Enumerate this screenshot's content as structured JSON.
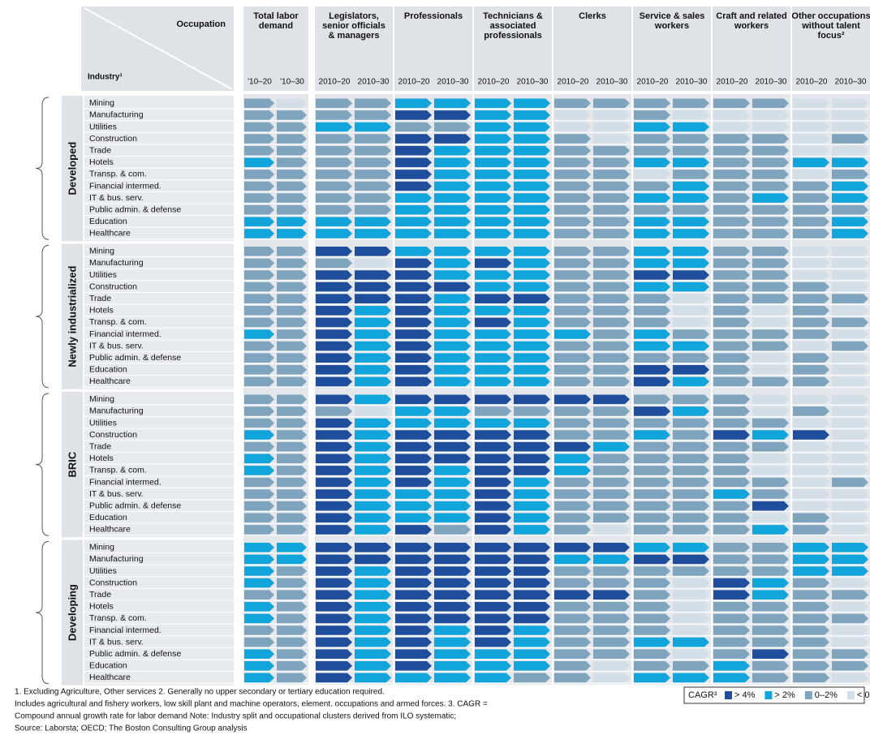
{
  "chart_data": {
    "type": "heatmap",
    "header_top": "Occupation",
    "header_bottom": "Industry¹",
    "columns": [
      {
        "name": "Total labor demand",
        "periods": [
          "'10–20",
          "'10–30"
        ]
      },
      {
        "name": "Legislators, senior officials & managers",
        "periods": [
          "2010–20",
          "2010–30"
        ]
      },
      {
        "name": "Professionals",
        "periods": [
          "2010–20",
          "2010–30"
        ]
      },
      {
        "name": "Technicians & associated professionals",
        "periods": [
          "2010–20",
          "2010–30"
        ]
      },
      {
        "name": "Clerks",
        "periods": [
          "2010–20",
          "2010–30"
        ]
      },
      {
        "name": "Service & sales workers",
        "periods": [
          "2010–20",
          "2010–30"
        ]
      },
      {
        "name": "Craft and related workers",
        "periods": [
          "2010–20",
          "2010–30"
        ]
      },
      {
        "name": "Other occupations without talent focus²",
        "periods": [
          "2010–20",
          "2010–30"
        ]
      }
    ],
    "industries": [
      "Mining",
      "Manufacturing",
      "Utilities",
      "Construction",
      "Trade",
      "Hotels",
      "Transp. & com.",
      "Financial intermed.",
      "IT & bus. serv.",
      "Public admin. & defense",
      "Education",
      "Healthcare"
    ],
    "groups": [
      {
        "name": "Developed",
        "rows": [
          [
            2,
            3,
            2,
            2,
            1,
            1,
            1,
            1,
            2,
            2,
            2,
            2,
            2,
            2,
            3,
            3
          ],
          [
            2,
            2,
            2,
            2,
            0,
            0,
            1,
            1,
            3,
            3,
            2,
            3,
            3,
            3,
            3,
            3
          ],
          [
            2,
            2,
            1,
            1,
            2,
            2,
            1,
            1,
            3,
            3,
            1,
            1,
            3,
            3,
            3,
            3
          ],
          [
            2,
            2,
            2,
            2,
            0,
            0,
            1,
            1,
            2,
            3,
            2,
            2,
            2,
            2,
            3,
            2
          ],
          [
            2,
            2,
            2,
            2,
            0,
            1,
            1,
            1,
            2,
            2,
            2,
            2,
            2,
            2,
            3,
            3
          ],
          [
            1,
            2,
            2,
            2,
            0,
            1,
            1,
            1,
            2,
            2,
            1,
            1,
            2,
            2,
            1,
            1
          ],
          [
            2,
            2,
            2,
            2,
            0,
            1,
            1,
            1,
            2,
            2,
            3,
            2,
            2,
            2,
            3,
            2
          ],
          [
            2,
            2,
            2,
            2,
            0,
            1,
            1,
            1,
            2,
            2,
            2,
            1,
            2,
            2,
            2,
            1
          ],
          [
            2,
            2,
            2,
            2,
            1,
            1,
            1,
            1,
            2,
            2,
            1,
            1,
            2,
            1,
            2,
            1
          ],
          [
            2,
            2,
            2,
            2,
            1,
            1,
            1,
            1,
            2,
            2,
            2,
            2,
            2,
            2,
            2,
            2
          ],
          [
            1,
            1,
            1,
            1,
            1,
            1,
            1,
            1,
            2,
            2,
            1,
            1,
            2,
            2,
            2,
            1
          ],
          [
            1,
            1,
            1,
            1,
            1,
            1,
            1,
            1,
            2,
            2,
            1,
            1,
            2,
            2,
            2,
            1
          ]
        ]
      },
      {
        "name": "Newly industrialized",
        "rows": [
          [
            2,
            2,
            0,
            0,
            1,
            1,
            1,
            1,
            2,
            2,
            1,
            1,
            2,
            2,
            3,
            3
          ],
          [
            2,
            2,
            2,
            3,
            0,
            1,
            0,
            1,
            2,
            2,
            1,
            1,
            2,
            2,
            3,
            3
          ],
          [
            2,
            2,
            0,
            0,
            0,
            1,
            1,
            1,
            2,
            2,
            0,
            0,
            2,
            2,
            3,
            3
          ],
          [
            2,
            2,
            0,
            0,
            0,
            0,
            1,
            1,
            2,
            2,
            1,
            1,
            2,
            2,
            2,
            3
          ],
          [
            2,
            2,
            0,
            0,
            0,
            1,
            0,
            0,
            2,
            2,
            2,
            3,
            2,
            2,
            2,
            2
          ],
          [
            2,
            2,
            0,
            1,
            0,
            1,
            1,
            1,
            2,
            2,
            2,
            3,
            2,
            3,
            2,
            3
          ],
          [
            2,
            2,
            0,
            1,
            0,
            1,
            0,
            1,
            2,
            2,
            2,
            3,
            2,
            3,
            2,
            2
          ],
          [
            1,
            2,
            0,
            1,
            0,
            1,
            1,
            1,
            1,
            2,
            1,
            2,
            2,
            2,
            2,
            3
          ],
          [
            2,
            2,
            0,
            1,
            0,
            1,
            1,
            1,
            2,
            2,
            1,
            1,
            2,
            2,
            3,
            2
          ],
          [
            2,
            2,
            0,
            1,
            0,
            1,
            1,
            1,
            2,
            2,
            2,
            2,
            2,
            3,
            2,
            3
          ],
          [
            2,
            2,
            0,
            1,
            0,
            1,
            1,
            1,
            2,
            2,
            0,
            0,
            2,
            3,
            2,
            3
          ],
          [
            2,
            2,
            0,
            1,
            0,
            1,
            1,
            1,
            2,
            2,
            0,
            1,
            2,
            2,
            2,
            3
          ]
        ]
      },
      {
        "name": "BRIC",
        "rows": [
          [
            2,
            2,
            0,
            1,
            0,
            0,
            0,
            0,
            0,
            0,
            2,
            2,
            2,
            3,
            3,
            3
          ],
          [
            2,
            2,
            2,
            3,
            1,
            1,
            2,
            2,
            2,
            2,
            0,
            1,
            2,
            3,
            2,
            3
          ],
          [
            2,
            2,
            0,
            1,
            1,
            1,
            1,
            1,
            2,
            2,
            2,
            2,
            2,
            2,
            3,
            3
          ],
          [
            1,
            2,
            0,
            1,
            0,
            0,
            0,
            0,
            2,
            2,
            1,
            2,
            0,
            1,
            0,
            3
          ],
          [
            2,
            2,
            0,
            1,
            0,
            0,
            0,
            0,
            0,
            1,
            2,
            2,
            2,
            2,
            3,
            3
          ],
          [
            1,
            2,
            0,
            1,
            0,
            0,
            0,
            0,
            1,
            2,
            2,
            2,
            2,
            3,
            3,
            3
          ],
          [
            1,
            2,
            0,
            1,
            0,
            1,
            0,
            0,
            1,
            2,
            2,
            2,
            2,
            3,
            3,
            3
          ],
          [
            2,
            2,
            0,
            1,
            0,
            1,
            0,
            1,
            2,
            2,
            2,
            2,
            2,
            2,
            3,
            2
          ],
          [
            2,
            2,
            0,
            1,
            1,
            1,
            0,
            1,
            2,
            2,
            2,
            2,
            1,
            2,
            3,
            3
          ],
          [
            2,
            2,
            0,
            1,
            1,
            1,
            0,
            1,
            2,
            2,
            2,
            2,
            2,
            0,
            3,
            3
          ],
          [
            2,
            2,
            0,
            1,
            1,
            1,
            0,
            1,
            2,
            2,
            2,
            2,
            2,
            3,
            2,
            3
          ],
          [
            2,
            2,
            0,
            1,
            0,
            2,
            0,
            1,
            2,
            3,
            2,
            2,
            2,
            1,
            2,
            3
          ]
        ]
      },
      {
        "name": "Developing",
        "rows": [
          [
            1,
            1,
            0,
            0,
            0,
            0,
            0,
            0,
            0,
            0,
            1,
            1,
            2,
            2,
            1,
            1
          ],
          [
            1,
            1,
            0,
            0,
            0,
            0,
            0,
            0,
            1,
            1,
            0,
            0,
            2,
            2,
            1,
            1
          ],
          [
            1,
            2,
            0,
            1,
            0,
            0,
            0,
            0,
            2,
            2,
            2,
            2,
            2,
            2,
            1,
            1
          ],
          [
            1,
            2,
            0,
            1,
            0,
            0,
            0,
            0,
            2,
            2,
            2,
            3,
            0,
            1,
            2,
            3
          ],
          [
            2,
            2,
            0,
            1,
            0,
            0,
            0,
            0,
            0,
            0,
            2,
            3,
            0,
            1,
            2,
            2
          ],
          [
            1,
            2,
            0,
            1,
            0,
            0,
            0,
            0,
            2,
            2,
            2,
            3,
            2,
            2,
            2,
            3
          ],
          [
            1,
            2,
            0,
            1,
            0,
            0,
            0,
            0,
            2,
            2,
            2,
            3,
            2,
            2,
            2,
            2
          ],
          [
            2,
            2,
            0,
            1,
            0,
            1,
            0,
            1,
            2,
            2,
            2,
            3,
            2,
            2,
            2,
            3
          ],
          [
            2,
            2,
            0,
            1,
            0,
            1,
            0,
            1,
            2,
            2,
            1,
            1,
            2,
            2,
            2,
            3
          ],
          [
            1,
            2,
            0,
            1,
            0,
            1,
            1,
            1,
            2,
            2,
            2,
            3,
            2,
            0,
            2,
            2
          ],
          [
            1,
            2,
            0,
            1,
            0,
            1,
            1,
            1,
            2,
            3,
            2,
            2,
            1,
            2,
            2,
            2
          ],
          [
            1,
            2,
            0,
            1,
            1,
            1,
            1,
            2,
            2,
            3,
            1,
            1,
            1,
            2,
            2,
            3
          ]
        ]
      }
    ],
    "legend": {
      "title": "CAGR³",
      "items": [
        {
          "label": "> 4%",
          "color": "#1f4f9c"
        },
        {
          "label": "> 2%",
          "color": "#12a5dc"
        },
        {
          "label": "0–2%",
          "color": "#7fa5be"
        },
        {
          "label": "< 0%",
          "color": "#d3dee7"
        }
      ]
    },
    "footnotes": [
      "1. Excluding Agriculture, Other services  2. Generally  no upper secondary or tertiary education required.",
      "Includes agricultural and fishery workers, low skill plant and machine operators, element. occupations and armed forces. 3. CAGR =",
      "Compound annual growth rate for labor demand  Note: Industry split and occupational clusters derived from ILO systematic;",
      "Source: Laborsta; OECD; The Boston Consulting Group analysis"
    ]
  }
}
